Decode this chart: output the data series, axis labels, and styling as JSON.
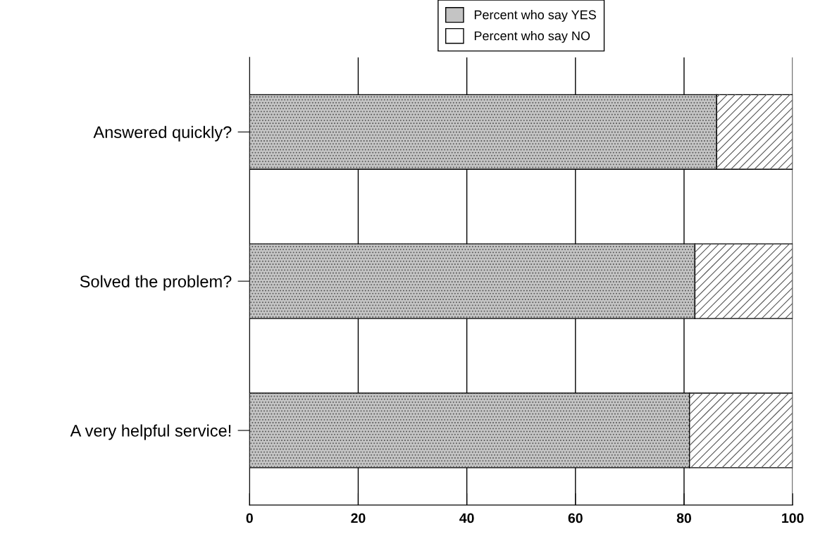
{
  "chart_data": {
    "type": "bar",
    "orientation": "horizontal",
    "stacked": true,
    "categories": [
      "Answered quickly?",
      "Solved the problem?",
      "A very helpful service!"
    ],
    "series": [
      {
        "name": "Percent who say YES",
        "color": "#c4c4c4",
        "values": [
          86,
          82,
          81
        ]
      },
      {
        "name": "Percent who say NO",
        "color": "#ffffff",
        "values": [
          14,
          18,
          19
        ]
      }
    ],
    "xlim": [
      0,
      100
    ],
    "xticks": [
      0,
      20,
      40,
      60,
      80,
      100
    ],
    "grid": "x",
    "legend": "top"
  }
}
